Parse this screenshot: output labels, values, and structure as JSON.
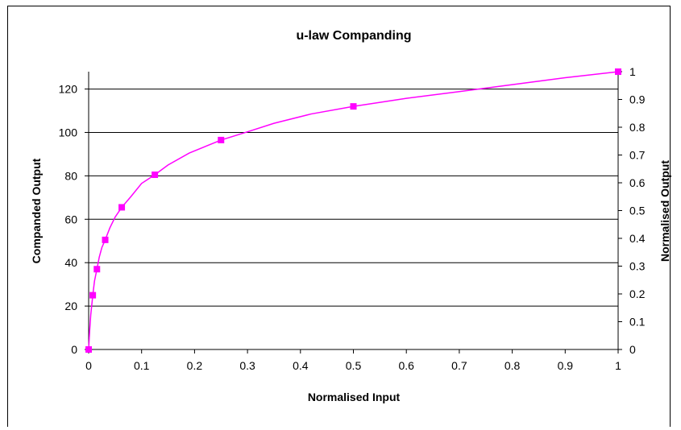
{
  "chart_data": {
    "type": "line",
    "title": "u-law Companding",
    "xlabel": "Normalised Input",
    "ylabel": "Companded Output",
    "y2label": "Normalised Output",
    "xlim": [
      0,
      1
    ],
    "ylim": [
      0,
      128
    ],
    "y2lim": [
      0,
      1
    ],
    "x_ticks": [
      "0",
      "0.1",
      "0.2",
      "0.3",
      "0.4",
      "0.5",
      "0.6",
      "0.7",
      "0.8",
      "0.9",
      "1"
    ],
    "y_ticks": [
      "0",
      "20",
      "40",
      "60",
      "80",
      "100",
      "120"
    ],
    "y2_ticks": [
      "0",
      "0.1",
      "0.2",
      "0.3",
      "0.4",
      "0.5",
      "0.6",
      "0.7",
      "0.8",
      "0.9",
      "1"
    ],
    "grid": "horizontal",
    "series_color": "#ff00ff",
    "series": [
      {
        "marker": "square",
        "markers_x": [
          0,
          0.0078125,
          0.015625,
          0.03125,
          0.0625,
          0.125,
          0.25,
          0.5,
          1
        ],
        "markers_y": [
          0,
          25,
          37,
          50.5,
          65.5,
          80.5,
          96.5,
          112,
          128
        ],
        "x": [
          0,
          0.002,
          0.004,
          0.0078125,
          0.011,
          0.015625,
          0.02,
          0.025,
          0.03125,
          0.04,
          0.05,
          0.0625,
          0.08,
          0.1,
          0.125,
          0.15,
          0.19,
          0.25,
          0.3,
          0.35,
          0.42,
          0.5,
          0.6,
          0.7,
          0.8,
          0.9,
          1
        ],
        "y": [
          0,
          9,
          16,
          25,
          31.5,
          37,
          42.5,
          47,
          50.5,
          56,
          61,
          65.5,
          70.5,
          76.5,
          80.5,
          85,
          90.5,
          96.5,
          100.3,
          104.2,
          108.5,
          112,
          115.7,
          118.8,
          122,
          125.2,
          128
        ]
      }
    ]
  }
}
